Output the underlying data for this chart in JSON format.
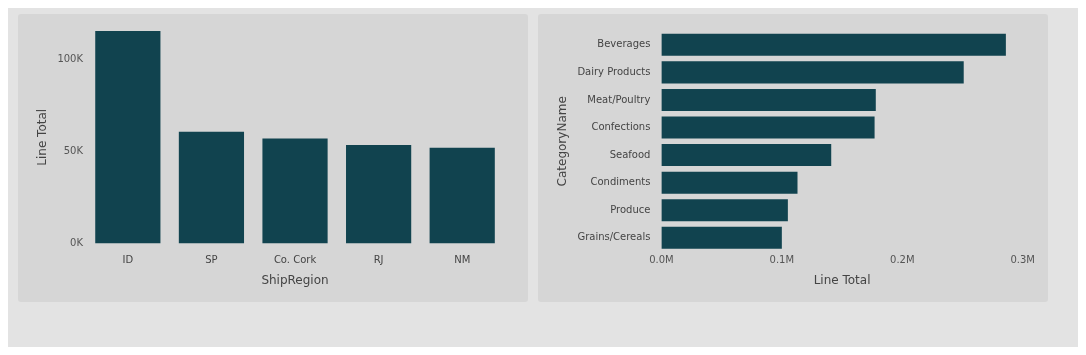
{
  "chart_data": [
    {
      "type": "bar",
      "xlabel": "ShipRegion",
      "ylabel": "Line Total",
      "categories": [
        "ID",
        "SP",
        "Co. Cork",
        "RJ",
        "NM"
      ],
      "values": [
        115700,
        60900,
        57200,
        53700,
        52200
      ],
      "color": "#11434f",
      "ylim": [
        0,
        115700
      ],
      "yticks": [
        {
          "value": 0,
          "label": "0K"
        },
        {
          "value": 50000,
          "label": "50K"
        },
        {
          "value": 100000,
          "label": "100K"
        }
      ],
      "legend": false
    },
    {
      "type": "bar",
      "orientation": "horizontal",
      "xlabel": "Line Total",
      "ylabel": "CategoryName",
      "categories": [
        "Beverages",
        "Dairy Products",
        "Meat/Poultry",
        "Confections",
        "Seafood",
        "Condiments",
        "Produce",
        "Grains/Cereals"
      ],
      "values": [
        286000,
        251000,
        178000,
        177000,
        141000,
        113000,
        105000,
        100000
      ],
      "color": "#11434f",
      "xlim": [
        0,
        300000
      ],
      "xticks": [
        {
          "value": 0,
          "label": "0.0M"
        },
        {
          "value": 100000,
          "label": "0.1M"
        },
        {
          "value": 200000,
          "label": "0.2M"
        },
        {
          "value": 300000,
          "label": "0.3M"
        }
      ],
      "legend": false
    }
  ]
}
